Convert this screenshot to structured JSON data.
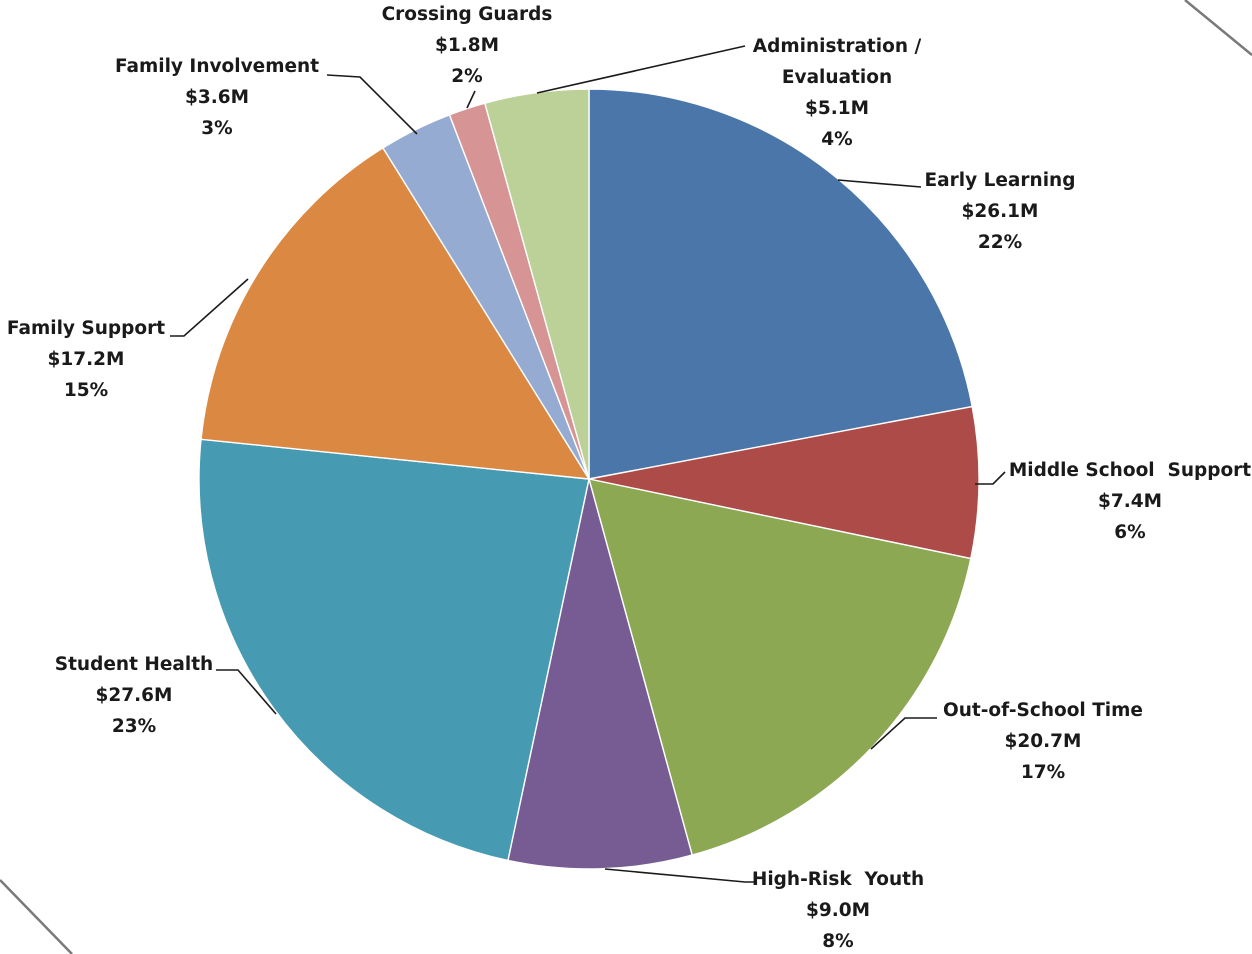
{
  "chart_data": {
    "type": "pie",
    "unit": "$M",
    "slices": [
      {
        "name": "Early Learning",
        "value_label": "$26.1M",
        "percent_label": "22%",
        "value": 26.1,
        "color": "#4A76A9"
      },
      {
        "name": "Middle School  Support",
        "value_label": "$7.4M",
        "percent_label": "6%",
        "value": 7.4,
        "color": "#AD4B48"
      },
      {
        "name": "Out-of-School Time",
        "value_label": "$20.7M",
        "percent_label": "17%",
        "value": 20.7,
        "color": "#8CA853"
      },
      {
        "name": "High-Risk  Youth",
        "value_label": "$9.0M",
        "percent_label": "8%",
        "value": 9.0,
        "color": "#765C92"
      },
      {
        "name": "Student Health",
        "value_label": "$27.6M",
        "percent_label": "23%",
        "value": 27.6,
        "color": "#469BB3"
      },
      {
        "name": "Family Support",
        "value_label": "$17.2M",
        "percent_label": "15%",
        "value": 17.2,
        "color": "#DA8842"
      },
      {
        "name": "Family Involvement",
        "value_label": "$3.6M",
        "percent_label": "3%",
        "value": 3.6,
        "color": "#96ABD2"
      },
      {
        "name": "Crossing Guards",
        "value_label": "$1.8M",
        "percent_label": "2%",
        "value": 1.8,
        "color": "#D69494"
      },
      {
        "name": "Administration /",
        "name_line2": "Evaluation",
        "value_label": "$5.1M",
        "percent_label": "4%",
        "value": 5.1,
        "color": "#BCD198"
      }
    ]
  }
}
